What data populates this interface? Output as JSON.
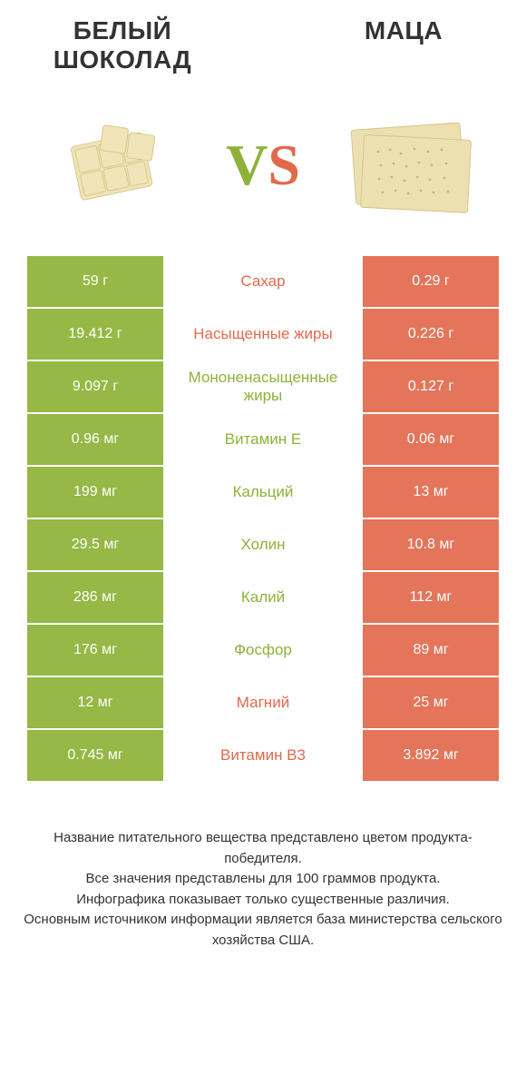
{
  "header": {
    "left_title": "БЕЛЫЙ ШОКОЛАД",
    "right_title": "МАЦА",
    "vs_v": "V",
    "vs_s": "S"
  },
  "colors": {
    "green": "#95b846",
    "orange": "#e4755a",
    "green_text": "#8fb13a",
    "orange_text": "#e06a4b",
    "background": "#ffffff",
    "text": "#333333"
  },
  "table": {
    "type": "comparison-table",
    "left_column_label": "Белый шоколад",
    "right_column_label": "Маца",
    "rows": [
      {
        "left": "59 г",
        "label": "Сахар",
        "right": "0.29 г",
        "winner": "left",
        "label_color": "orange"
      },
      {
        "left": "19.412 г",
        "label": "Насыщенные жиры",
        "right": "0.226 г",
        "winner": "left",
        "label_color": "orange"
      },
      {
        "left": "9.097 г",
        "label": "Мононенасыщенные жиры",
        "right": "0.127 г",
        "winner": "left",
        "label_color": "green"
      },
      {
        "left": "0.96 мг",
        "label": "Витамин E",
        "right": "0.06 мг",
        "winner": "left",
        "label_color": "green"
      },
      {
        "left": "199 мг",
        "label": "Кальций",
        "right": "13 мг",
        "winner": "left",
        "label_color": "green"
      },
      {
        "left": "29.5 мг",
        "label": "Холин",
        "right": "10.8 мг",
        "winner": "left",
        "label_color": "green"
      },
      {
        "left": "286 мг",
        "label": "Калий",
        "right": "112 мг",
        "winner": "left",
        "label_color": "green"
      },
      {
        "left": "176 мг",
        "label": "Фосфор",
        "right": "89 мг",
        "winner": "left",
        "label_color": "green"
      },
      {
        "left": "12 мг",
        "label": "Магний",
        "right": "25 мг",
        "winner": "right",
        "label_color": "orange"
      },
      {
        "left": "0.745 мг",
        "label": "Витамин B3",
        "right": "3.892 мг",
        "winner": "right",
        "label_color": "orange"
      }
    ]
  },
  "footer": {
    "line1": "Название питательного вещества представлено цветом продукта-победителя.",
    "line2": "Все значения представлены для 100 граммов продукта.",
    "line3": "Инфографика показывает только существенные различия.",
    "line4": "Основным источником информации является база министерства сельского хозяйства США."
  }
}
